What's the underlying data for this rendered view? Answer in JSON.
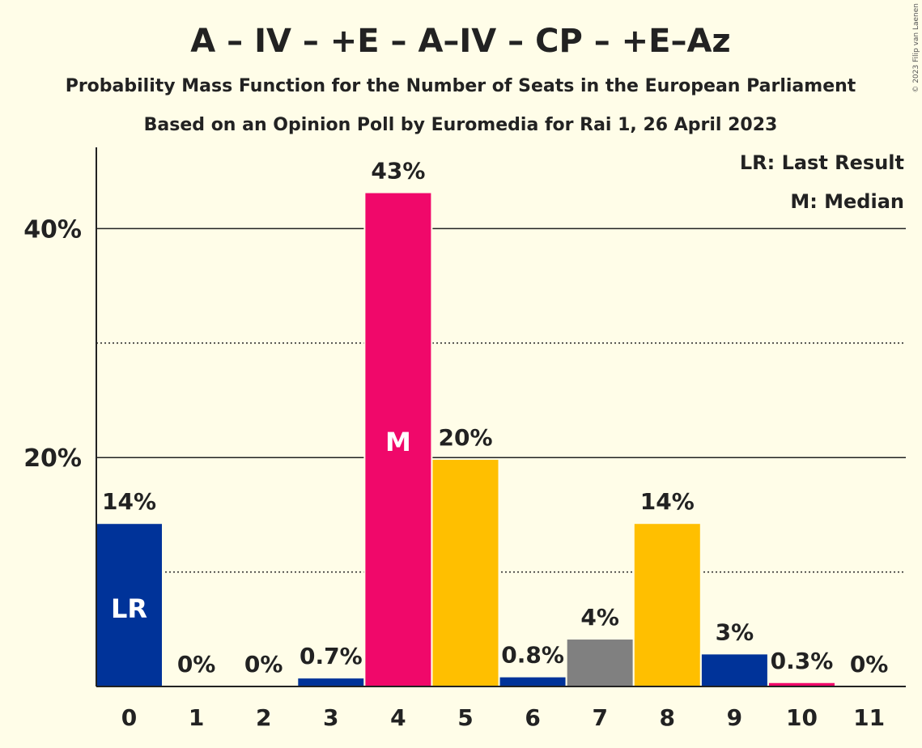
{
  "title": "A – IV – +E – A–IV – CP – +E–Az",
  "subtitle": "Probability Mass Function for the Number of Seats in the European Parliament",
  "source_line": "Based on an Opinion Poll by Euromedia for Rai 1, 26 April 2023",
  "copyright": "© 2023 Filip van Laenen",
  "legend": {
    "last_result": "LR: Last Result",
    "median": "M: Median"
  },
  "chart_data": {
    "type": "bar",
    "categories": [
      "0",
      "1",
      "2",
      "3",
      "4",
      "5",
      "6",
      "7",
      "8",
      "9",
      "10",
      "11"
    ],
    "values": [
      14.2,
      0,
      0,
      0.7,
      43.1,
      19.8,
      0.8,
      4.1,
      14.2,
      2.8,
      0.3,
      0
    ],
    "value_labels": [
      "14%",
      "0%",
      "0%",
      "0.7%",
      "43%",
      "20%",
      "0.8%",
      "4%",
      "14%",
      "3%",
      "0.3%",
      "0%"
    ],
    "bar_colors": [
      "#003399",
      "#003399",
      "#003399",
      "#003399",
      "#f0086a",
      "#ffbf00",
      "#003399",
      "#808080",
      "#ffbf00",
      "#003399",
      "#f0086a",
      "#003399"
    ],
    "ylim": [
      0,
      47
    ],
    "y_ticks": [
      {
        "value": 20,
        "label": "20%"
      },
      {
        "value": 40,
        "label": "40%"
      }
    ],
    "y_minor_gridlines": [
      10,
      30
    ],
    "grid": true,
    "legend_position": "top-right",
    "markers": [
      {
        "category": "0",
        "text": "LR"
      },
      {
        "category": "4",
        "text": "M"
      }
    ]
  }
}
